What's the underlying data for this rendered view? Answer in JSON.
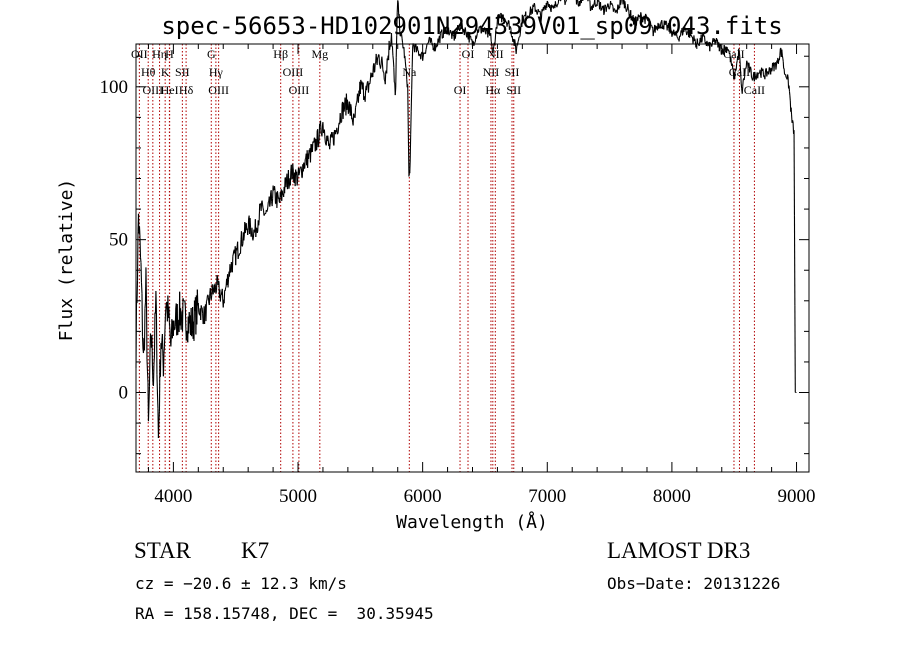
{
  "chart_data": {
    "type": "line",
    "title": "spec-56653-HD102901N294339V01_sp09-043.fits",
    "xlabel": "Wavelength (Å)",
    "ylabel": "Flux (relative)",
    "xlim": [
      3700,
      9100
    ],
    "ylim": [
      -26,
      114
    ],
    "x_ticks": [
      4000,
      5000,
      6000,
      7000,
      8000,
      9000
    ],
    "y_ticks": [
      0,
      50,
      100
    ],
    "series": [
      {
        "name": "flux",
        "x": [
          3700,
          3720,
          3740,
          3760,
          3780,
          3800,
          3820,
          3840,
          3860,
          3880,
          3900,
          3920,
          3940,
          3960,
          3980,
          4000,
          4050,
          4100,
          4150,
          4200,
          4250,
          4300,
          4350,
          4400,
          4450,
          4500,
          4550,
          4600,
          4650,
          4700,
          4750,
          4800,
          4850,
          4900,
          4950,
          5000,
          5050,
          5100,
          5150,
          5200,
          5250,
          5300,
          5350,
          5400,
          5450,
          5500,
          5550,
          5600,
          5650,
          5700,
          5750,
          5780,
          5800,
          5820,
          5850,
          5880,
          5890,
          5900,
          5920,
          5950,
          6000,
          6050,
          6100,
          6150,
          6200,
          6250,
          6300,
          6350,
          6400,
          6450,
          6500,
          6550,
          6563,
          6600,
          6650,
          6700,
          6750,
          6800,
          6850,
          6900,
          6950,
          7000,
          7050,
          7100,
          7150,
          7200,
          7250,
          7300,
          7350,
          7400,
          7450,
          7500,
          7550,
          7600,
          7650,
          7700,
          7750,
          7800,
          7850,
          7900,
          7950,
          8000,
          8050,
          8100,
          8150,
          8200,
          8250,
          8300,
          8350,
          8400,
          8450,
          8500,
          8540,
          8560,
          8600,
          8650,
          8700,
          8750,
          8800,
          8850,
          8870,
          8890,
          8900,
          8920,
          8940,
          8950,
          8960,
          8980,
          8990,
          9000
        ],
        "values": [
          15,
          58,
          40,
          10,
          35,
          -12,
          20,
          5,
          30,
          -15,
          18,
          10,
          30,
          25,
          15,
          22,
          26,
          24,
          22,
          28,
          25,
          32,
          35,
          30,
          40,
          45,
          50,
          55,
          52,
          60,
          58,
          65,
          62,
          68,
          72,
          70,
          75,
          78,
          82,
          88,
          80,
          85,
          92,
          95,
          88,
          100,
          98,
          105,
          110,
          104,
          118,
          96,
          128,
          118,
          112,
          100,
          70,
          75,
          114,
          112,
          110,
          115,
          113,
          117,
          119,
          116,
          120,
          118,
          114,
          119,
          118,
          116,
          110,
          122,
          123,
          120,
          112,
          122,
          124,
          126,
          123,
          128,
          125,
          130,
          128,
          132,
          127,
          131,
          126,
          128,
          125,
          127,
          124,
          129,
          125,
          121,
          123,
          122,
          118,
          121,
          120,
          118,
          116,
          119,
          117,
          114,
          116,
          113,
          115,
          112,
          113,
          103,
          112,
          98,
          108,
          103,
          105,
          104,
          106,
          108,
          112,
          110,
          105,
          104,
          100,
          95,
          90,
          85,
          0,
          0
        ]
      }
    ],
    "lines": [
      {
        "name": "OII",
        "wavelength": 3727
      },
      {
        "name": "Hθ",
        "wavelength": 3798
      },
      {
        "name": "OIII",
        "wavelength": 3835
      },
      {
        "name": "Hη",
        "wavelength": 3889
      },
      {
        "name": "K",
        "wavelength": 3934
      },
      {
        "name": "HeI",
        "wavelength": 3970
      },
      {
        "name": "H",
        "wavelength": 3968
      },
      {
        "name": "SII",
        "wavelength": 4072
      },
      {
        "name": "Hδ",
        "wavelength": 4102
      },
      {
        "name": "G",
        "wavelength": 4304
      },
      {
        "name": "Hγ",
        "wavelength": 4341
      },
      {
        "name": "OIII",
        "wavelength": 4363
      },
      {
        "name": "Hβ",
        "wavelength": 4861
      },
      {
        "name": "OIII",
        "wavelength": 4959
      },
      {
        "name": "OIII",
        "wavelength": 5007
      },
      {
        "name": "Mg",
        "wavelength": 5175
      },
      {
        "name": "Na",
        "wavelength": 5893
      },
      {
        "name": "OI",
        "wavelength": 6300
      },
      {
        "name": "OI",
        "wavelength": 6364
      },
      {
        "name": "NII",
        "wavelength": 6548
      },
      {
        "name": "Hα",
        "wavelength": 6563
      },
      {
        "name": "NII",
        "wavelength": 6583
      },
      {
        "name": "SII",
        "wavelength": 6717
      },
      {
        "name": "SII",
        "wavelength": 6731
      },
      {
        "name": "CaII",
        "wavelength": 8498
      },
      {
        "name": "CaII",
        "wavelength": 8542
      },
      {
        "name": "CaII",
        "wavelength": 8662
      }
    ],
    "line_color": "#b00000",
    "data_color": "#000000"
  },
  "footer": {
    "class": "STAR",
    "subclass": "K7",
    "survey": "LAMOST DR3",
    "cz": "cz = −20.6 ± 12.3 km/s",
    "obs_date": "Obs−Date: 20131226",
    "coords": "RA = 158.15748, DEC =  30.35945"
  }
}
